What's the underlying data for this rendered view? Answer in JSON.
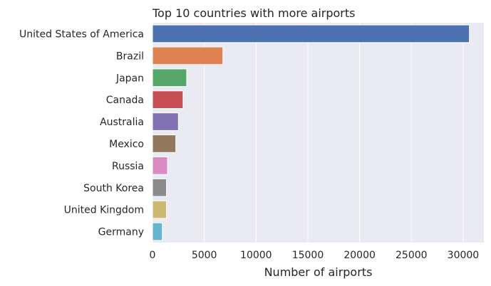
{
  "chart_data": {
    "type": "bar",
    "orientation": "horizontal",
    "title": "Top 10 countries with more airports",
    "xlabel": "Number of airports",
    "ylabel": "",
    "categories": [
      "United States of America",
      "Brazil",
      "Japan",
      "Canada",
      "Australia",
      "Mexico",
      "Russia",
      "South Korea",
      "United Kingdom",
      "Germany"
    ],
    "values": [
      30600,
      6800,
      3300,
      2950,
      2500,
      2250,
      1450,
      1350,
      1350,
      950
    ],
    "xlim": [
      0,
      32000
    ],
    "xticks": [
      0,
      5000,
      10000,
      15000,
      20000,
      25000,
      30000
    ],
    "grid": true,
    "colors": [
      "#4c72b0",
      "#dd8452",
      "#55a868",
      "#c44e52",
      "#8172b3",
      "#937860",
      "#da8bc3",
      "#8c8c8c",
      "#ccb974",
      "#64b5cd"
    ],
    "background": "#eaeaf2"
  }
}
